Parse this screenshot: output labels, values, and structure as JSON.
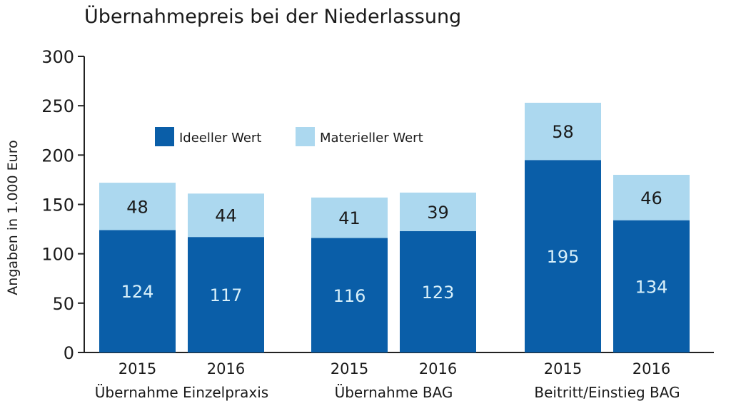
{
  "chart_data": {
    "type": "bar",
    "stacked": true,
    "title": "Übernahmepreis bei der Niederlassung",
    "ylabel": "Angaben in 1.000 Euro",
    "xlabel": "",
    "ylim": [
      0,
      300
    ],
    "yticks": [
      "0",
      "50",
      "100",
      "150",
      "200",
      "250",
      "300"
    ],
    "grid": false,
    "legend_position": "top-left",
    "groups": [
      {
        "name": "Übernahme Einzelpraxis",
        "years": [
          "2015",
          "2016"
        ]
      },
      {
        "name": "Übernahme BAG",
        "years": [
          "2015",
          "2016"
        ]
      },
      {
        "name": "Beitritt/Einstieg BAG",
        "years": [
          "2015",
          "2016"
        ]
      }
    ],
    "series": [
      {
        "name": "Ideeller Wert",
        "color": "#0a5ea8",
        "label_color": "#d8f0fa",
        "values": [
          124,
          117,
          116,
          123,
          195,
          134
        ]
      },
      {
        "name": "Materieller Wert",
        "color": "#acd8ef",
        "label_color": "#1a1a1a",
        "values": [
          48,
          44,
          41,
          39,
          58,
          46
        ]
      }
    ]
  }
}
